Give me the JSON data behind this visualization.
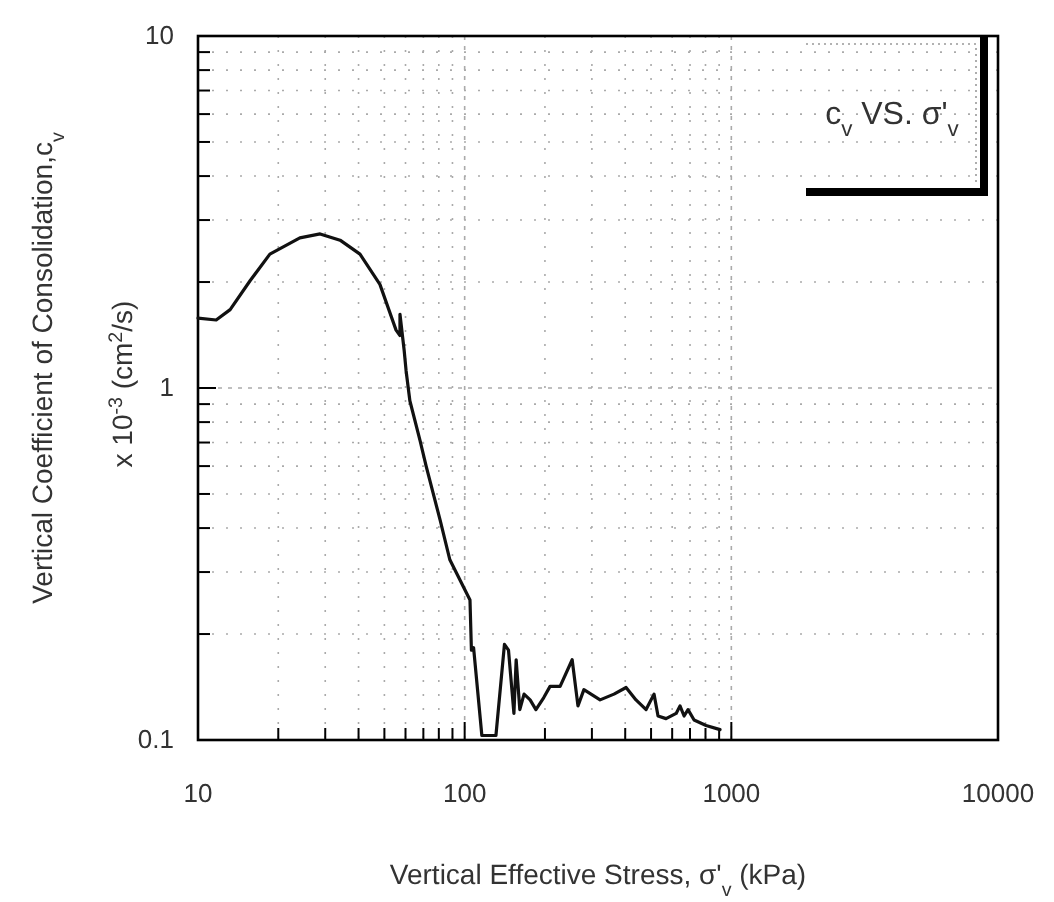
{
  "chart_data": {
    "type": "line",
    "xlabel": "Vertical Effective Stress, σ'$_{v}$ (kPa)",
    "ylabel": "Vertical Coefficient of Consolidation,c$_{v}$\nx 10$^{-3}$ (cm$^{2}$/s)",
    "log": "xy",
    "grid": true,
    "line_style": "solid",
    "marker": "none",
    "xlim": [
      10,
      10000
    ],
    "ylim": [
      0.1,
      10
    ],
    "xticks": [
      10,
      {
        "value": 20,
        "label": null
      },
      {
        "value": 30,
        "label": null
      },
      {
        "value": 40,
        "label": null
      },
      {
        "value": 50,
        "label": null
      },
      {
        "value": 60,
        "label": null
      },
      {
        "value": 70,
        "label": null
      },
      {
        "value": 80,
        "label": null
      },
      {
        "value": 90,
        "label": null
      },
      100,
      {
        "value": 200,
        "label": null
      },
      {
        "value": 300,
        "label": null
      },
      {
        "value": 400,
        "label": null
      },
      {
        "value": 500,
        "label": null
      },
      {
        "value": 600,
        "label": null
      },
      {
        "value": 700,
        "label": null
      },
      {
        "value": 800,
        "label": null
      },
      {
        "value": 900,
        "label": null
      },
      1000,
      10000
    ],
    "yticks": [
      0.1,
      {
        "value": 0.2,
        "label": null
      },
      {
        "value": 0.3,
        "label": null
      },
      {
        "value": 0.4,
        "label": null
      },
      {
        "value": 0.5,
        "label": null
      },
      {
        "value": 0.6,
        "label": null
      },
      {
        "value": 0.7,
        "label": null
      },
      {
        "value": 0.8,
        "label": null
      },
      {
        "value": 0.9,
        "label": null
      },
      1,
      {
        "value": 2,
        "label": null
      },
      {
        "value": 3,
        "label": null
      },
      {
        "value": 4,
        "label": null
      },
      {
        "value": 5,
        "label": null
      },
      {
        "value": 6,
        "label": null
      },
      {
        "value": 7,
        "label": null
      },
      {
        "value": 8,
        "label": null
      },
      {
        "value": 9,
        "label": null
      },
      10
    ],
    "annotations": [
      "c$_{v}$ VS. σ'$_{v}$"
    ],
    "series": [
      {
        "color": "#111111",
        "x": [
          10,
          11.7,
          13.2,
          15.7,
          18.6,
          24.1,
          28.7,
          34.1,
          40.5,
          48.1,
          55.3,
          57.2,
          57.2,
          59.3,
          60.3,
          62.3,
          68,
          71.7,
          81,
          88,
          104.7,
          106,
          108,
          116,
          131,
          141,
          146,
          153,
          156,
          161,
          167,
          176,
          185,
          198,
          209,
          228,
          253,
          266,
          280,
          322,
          363,
          403,
          439,
          479,
          513,
          531,
          569,
          621,
          642,
          665,
          688,
          725,
          804,
          907
        ],
        "values": [
          1.58,
          1.56,
          1.67,
          2.02,
          2.4,
          2.67,
          2.74,
          2.63,
          2.4,
          1.97,
          1.46,
          1.41,
          1.62,
          1.28,
          1.12,
          0.92,
          0.71,
          0.6,
          0.42,
          0.325,
          0.25,
          0.18,
          0.183,
          0.103,
          0.103,
          0.187,
          0.18,
          0.119,
          0.169,
          0.122,
          0.135,
          0.13,
          0.122,
          0.132,
          0.142,
          0.142,
          0.169,
          0.125,
          0.139,
          0.13,
          0.135,
          0.141,
          0.13,
          0.122,
          0.135,
          0.117,
          0.115,
          0.119,
          0.125,
          0.117,
          0.122,
          0.114,
          0.11,
          0.107
        ]
      }
    ]
  }
}
